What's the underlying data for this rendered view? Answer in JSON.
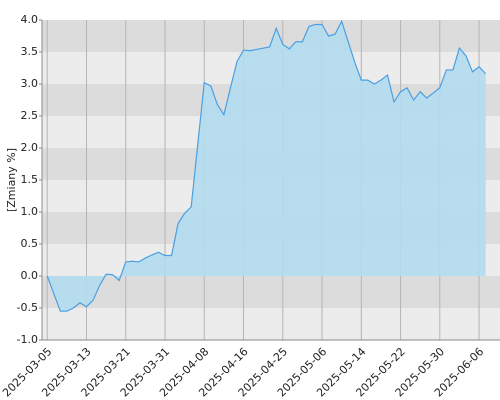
{
  "chart_data": {
    "type": "area",
    "y_label": "[Zmiany %]",
    "x": [
      0,
      2,
      3,
      4,
      5,
      6,
      7,
      8,
      9,
      10,
      11,
      12,
      13,
      14,
      15,
      16,
      17,
      18,
      19,
      20,
      21,
      22,
      24,
      25,
      26,
      27,
      28,
      29,
      30,
      31,
      32,
      33,
      34,
      35,
      36,
      37,
      38,
      39,
      40,
      41,
      42,
      43,
      44,
      45,
      46,
      47,
      48,
      49,
      50,
      51,
      52,
      53,
      54,
      55,
      56,
      57,
      58,
      59,
      60,
      61,
      62,
      63,
      64,
      65,
      66,
      67
    ],
    "series": [
      {
        "color": "#4a9fe3",
        "fill": "#b3dcee",
        "values": [
          0.0,
          -0.55,
          -0.55,
          -0.5,
          -0.42,
          -0.48,
          -0.38,
          -0.15,
          0.03,
          0.02,
          -0.07,
          0.22,
          0.23,
          0.22,
          0.28,
          0.33,
          0.37,
          0.32,
          0.32,
          0.82,
          0.98,
          1.08,
          3.02,
          2.97,
          2.68,
          2.52,
          2.94,
          3.35,
          3.53,
          3.52,
          3.54,
          3.56,
          3.58,
          3.87,
          3.62,
          3.55,
          3.66,
          3.66,
          3.9,
          3.93,
          3.93,
          3.75,
          3.78,
          3.98,
          3.66,
          3.34,
          3.06,
          3.06,
          3.0,
          3.06,
          3.14,
          2.72,
          2.88,
          2.94,
          2.75,
          2.88,
          2.78,
          2.86,
          2.94,
          3.22,
          3.22,
          3.56,
          3.44,
          3.19,
          3.27,
          3.16
        ]
      }
    ],
    "xlim": [
      -0.8,
      69.2
    ],
    "xticks": [
      {
        "value": 0,
        "label": "2025-03-05"
      },
      {
        "value": 6,
        "label": "2025-03-13"
      },
      {
        "value": 12,
        "label": "2025-03-21"
      },
      {
        "value": 18,
        "label": "2025-03-31"
      },
      {
        "value": 24,
        "label": "2025-04-08"
      },
      {
        "value": 30,
        "label": "2025-04-16"
      },
      {
        "value": 36,
        "label": "2025-04-25"
      },
      {
        "value": 42,
        "label": "2025-05-06"
      },
      {
        "value": 48,
        "label": "2025-05-14"
      },
      {
        "value": 54,
        "label": "2025-05-22"
      },
      {
        "value": 60,
        "label": "2025-05-30"
      },
      {
        "value": 66,
        "label": "2025-06-06"
      }
    ],
    "ylim": [
      -1,
      4
    ],
    "yticks": [
      {
        "value": -1,
        "label": "-1.0"
      },
      {
        "value": -0.5,
        "label": "-0.5"
      },
      {
        "value": 0,
        "label": "0.0"
      },
      {
        "value": 0.5,
        "label": "0.5"
      },
      {
        "value": 1,
        "label": "1.0"
      },
      {
        "value": 1.5,
        "label": "1.5"
      },
      {
        "value": 2,
        "label": "2.0"
      },
      {
        "value": 2.5,
        "label": "2.5"
      },
      {
        "value": 3,
        "label": "3.0"
      },
      {
        "value": 3.5,
        "label": "3.5"
      },
      {
        "value": 4,
        "label": "4.0"
      }
    ],
    "band_colors": [
      "#dcdcdc",
      "#ececec"
    ],
    "grid": true
  }
}
